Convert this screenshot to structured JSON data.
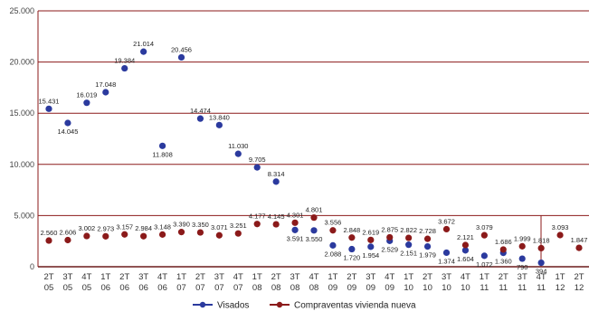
{
  "chart_data": {
    "type": "scatter",
    "title": "",
    "xlabel": "",
    "ylabel": "",
    "ylim": [
      0,
      25000
    ],
    "y_ticks": [
      "0",
      "5.000",
      "10.000",
      "15.000",
      "20.000",
      "25.000"
    ],
    "y_tick_values": [
      0,
      5000,
      10000,
      15000,
      20000,
      25000
    ],
    "grid": "horizontal",
    "legend_position": "bottom-center",
    "categories": [
      {
        "q": "2T",
        "y": "05"
      },
      {
        "q": "3T",
        "y": "05"
      },
      {
        "q": "4T",
        "y": "05"
      },
      {
        "q": "1T",
        "y": "06"
      },
      {
        "q": "2T",
        "y": "06"
      },
      {
        "q": "3T",
        "y": "06"
      },
      {
        "q": "4T",
        "y": "06"
      },
      {
        "q": "1T",
        "y": "07"
      },
      {
        "q": "2T",
        "y": "07"
      },
      {
        "q": "3T",
        "y": "07"
      },
      {
        "q": "4T",
        "y": "07"
      },
      {
        "q": "1T",
        "y": "08"
      },
      {
        "q": "2T",
        "y": "08"
      },
      {
        "q": "3T",
        "y": "08"
      },
      {
        "q": "4T",
        "y": "08"
      },
      {
        "q": "1T",
        "y": "09"
      },
      {
        "q": "2T",
        "y": "09"
      },
      {
        "q": "3T",
        "y": "09"
      },
      {
        "q": "4T",
        "y": "09"
      },
      {
        "q": "1T",
        "y": "10"
      },
      {
        "q": "2T",
        "y": "10"
      },
      {
        "q": "3T",
        "y": "10"
      },
      {
        "q": "4T",
        "y": "10"
      },
      {
        "q": "1T",
        "y": "11"
      },
      {
        "q": "2T",
        "y": "11"
      },
      {
        "q": "3T",
        "y": "11"
      },
      {
        "q": "4T",
        "y": "11"
      },
      {
        "q": "1T",
        "y": "12"
      },
      {
        "q": "2T",
        "y": "12"
      }
    ],
    "series": [
      {
        "name": "Visados",
        "color": "#2b3a9e",
        "values": [
          15431,
          14045,
          16019,
          17048,
          19384,
          21014,
          11808,
          20456,
          14474,
          13840,
          11030,
          9705,
          8314,
          3591,
          3550,
          2088,
          1720,
          1954,
          2529,
          2151,
          1979,
          1374,
          1604,
          1072,
          1360,
          790,
          394,
          null,
          null
        ],
        "labels": [
          "15.431",
          "14.045",
          "16.019",
          "17.048",
          "19.384",
          "21.014",
          "11.808",
          "20.456",
          "14.474",
          "13.840",
          "11.030",
          "9.705",
          "8.314",
          "3.591",
          "3.550",
          "2.088",
          "1.720",
          "1.954",
          "2.529",
          "2.151",
          "1.979",
          "1.374",
          "1.604",
          "1.072",
          "1.360",
          "790",
          "394",
          "",
          ""
        ],
        "label_pos": [
          "above",
          "below",
          "above",
          "above",
          "above",
          "above",
          "below",
          "above",
          "above",
          "above",
          "above",
          "above",
          "above",
          "below",
          "below",
          "below",
          "below",
          "below",
          "below",
          "below",
          "below",
          "below",
          "below",
          "below",
          "below",
          "below",
          "below",
          "above",
          "above"
        ]
      },
      {
        "name": "Compraventas vivienda nueva",
        "color": "#8b1a1a",
        "values": [
          2560,
          2606,
          3002,
          2973,
          3157,
          2984,
          3148,
          3390,
          3350,
          3071,
          3251,
          4177,
          4145,
          4301,
          4801,
          3556,
          2848,
          2619,
          2875,
          2822,
          2728,
          3672,
          2121,
          3079,
          1686,
          1999,
          1818,
          3093,
          1847
        ],
        "labels": [
          "2.560",
          "2.606",
          "3.002",
          "2.973",
          "3.157",
          "2.984",
          "3.148",
          "3.390",
          "3.350",
          "3.071",
          "3.251",
          "4.177",
          "4.145",
          "4.301",
          "4.801",
          "3.556",
          "2.848",
          "2.619",
          "2.875",
          "2.822",
          "2.728",
          "3.672",
          "2.121",
          "3.079",
          "1.686",
          "1.999",
          "1.818",
          "3.093",
          "1.847"
        ],
        "label_pos": [
          "above",
          "above",
          "above",
          "above",
          "above",
          "above",
          "above",
          "above",
          "above",
          "above",
          "above",
          "above",
          "above",
          "above",
          "above",
          "above",
          "above",
          "above",
          "above",
          "above",
          "above",
          "above",
          "above",
          "above",
          "above",
          "above",
          "above",
          "above",
          "above"
        ]
      }
    ]
  }
}
